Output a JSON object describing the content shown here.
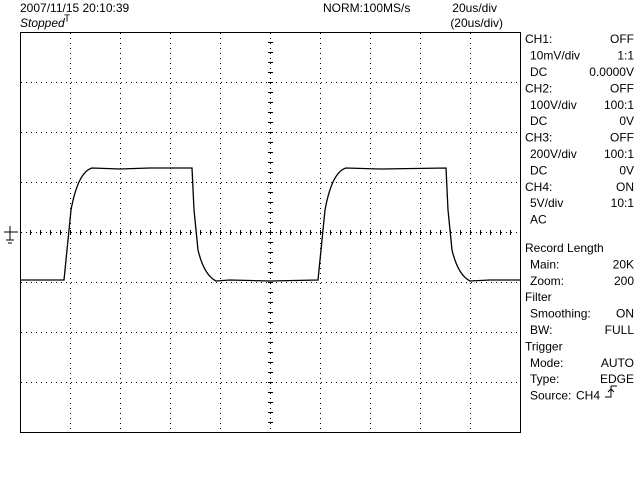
{
  "header": {
    "datetime": "2007/11/15  20:10:39",
    "status": "Stopped",
    "trigger_mark": "T",
    "acquisition": "NORM:100MS/s",
    "timebase": "20us/div",
    "zoom_timebase": "(20us/div)"
  },
  "panel": {
    "rows": [
      {
        "label": "CH1:",
        "value": "OFF"
      },
      {
        "label": "10mV/div",
        "value": "1:1",
        "indent": true
      },
      {
        "label": "DC",
        "value": "0.0000V",
        "indent": true
      },
      {
        "label": "CH2:",
        "value": "OFF"
      },
      {
        "label": "100V/div",
        "value": "100:1",
        "indent": true
      },
      {
        "label": "DC",
        "value": "0V",
        "indent": true
      },
      {
        "label": "CH3:",
        "value": "OFF"
      },
      {
        "label": "200V/div",
        "value": "100:1",
        "indent": true
      },
      {
        "label": "DC",
        "value": "0V",
        "indent": true
      },
      {
        "label": "CH4:",
        "value": "ON"
      },
      {
        "label": "5V/div",
        "value": "10:1",
        "indent": true
      },
      {
        "label": "AC",
        "indent": true
      },
      {
        "label": "Record Length",
        "gap": true
      },
      {
        "label": "Main:",
        "value": "20K",
        "indent": true
      },
      {
        "label": "Zoom:",
        "value": "200",
        "indent": true
      },
      {
        "label": "Filter"
      },
      {
        "label": "Smoothing:",
        "value": "ON",
        "indent": true
      },
      {
        "label": "BW:",
        "value": "FULL",
        "indent": true
      },
      {
        "label": "Trigger"
      },
      {
        "label": "Mode:",
        "value": "AUTO",
        "indent": true
      },
      {
        "label": "Type:",
        "value": "EDGE",
        "indent": true
      },
      {
        "label": "Source:",
        "value": "CH4",
        "indent": true
      }
    ]
  }
}
